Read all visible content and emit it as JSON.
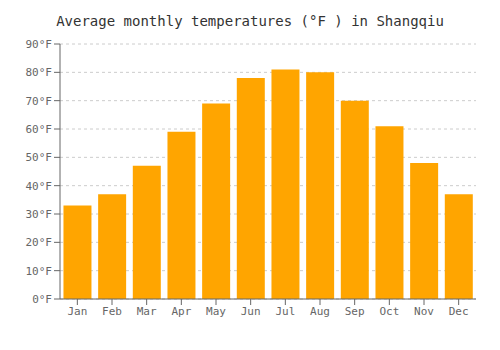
{
  "chart_data": {
    "type": "bar",
    "title": "Average monthly temperatures (°F ) in Shangqiu",
    "categories": [
      "Jan",
      "Feb",
      "Mar",
      "Apr",
      "May",
      "Jun",
      "Jul",
      "Aug",
      "Sep",
      "Oct",
      "Nov",
      "Dec"
    ],
    "values": [
      33,
      37,
      47,
      59,
      69,
      78,
      81,
      80,
      70,
      61,
      48,
      37
    ],
    "color": "#FFA500",
    "ylim": [
      0,
      90
    ],
    "yticks": [
      {
        "value": 0,
        "label": "0°F"
      },
      {
        "value": 10,
        "label": "10°F"
      },
      {
        "value": 20,
        "label": "20°F"
      },
      {
        "value": 30,
        "label": "30°F"
      },
      {
        "value": 40,
        "label": "40°F"
      },
      {
        "value": 50,
        "label": "50°F"
      },
      {
        "value": 60,
        "label": "60°F"
      },
      {
        "value": 70,
        "label": "70°F"
      },
      {
        "value": 80,
        "label": "80°F"
      },
      {
        "value": 90,
        "label": "90°F"
      }
    ],
    "grid": true
  }
}
